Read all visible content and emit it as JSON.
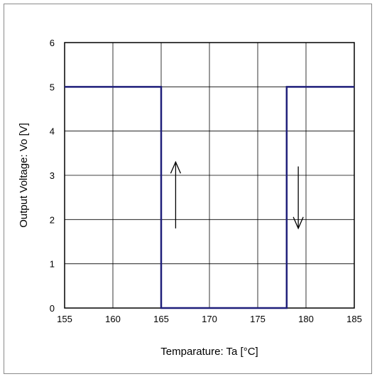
{
  "chart_data": {
    "type": "line",
    "title": "",
    "xlabel": "Temparature: Ta [°C]",
    "ylabel": "Output Voltage: Vo [V]",
    "xlim": [
      155,
      185
    ],
    "ylim": [
      0,
      6
    ],
    "xticks": [
      155,
      160,
      165,
      170,
      175,
      180,
      185
    ],
    "yticks": [
      0,
      1,
      2,
      3,
      4,
      5,
      6
    ],
    "grid": true,
    "legend": "none",
    "line_color": "#1f1f7a",
    "series": [
      {
        "x": [
          155,
          165,
          165,
          178,
          178,
          185
        ],
        "y": [
          5,
          5,
          0,
          0,
          5,
          5
        ]
      }
    ],
    "annotations": [
      {
        "kind": "arrow-up",
        "x": 166.5,
        "y_from": 1.8,
        "y_to": 3.3
      },
      {
        "kind": "arrow-down",
        "x": 179.2,
        "y_from": 3.2,
        "y_to": 1.8
      }
    ]
  }
}
